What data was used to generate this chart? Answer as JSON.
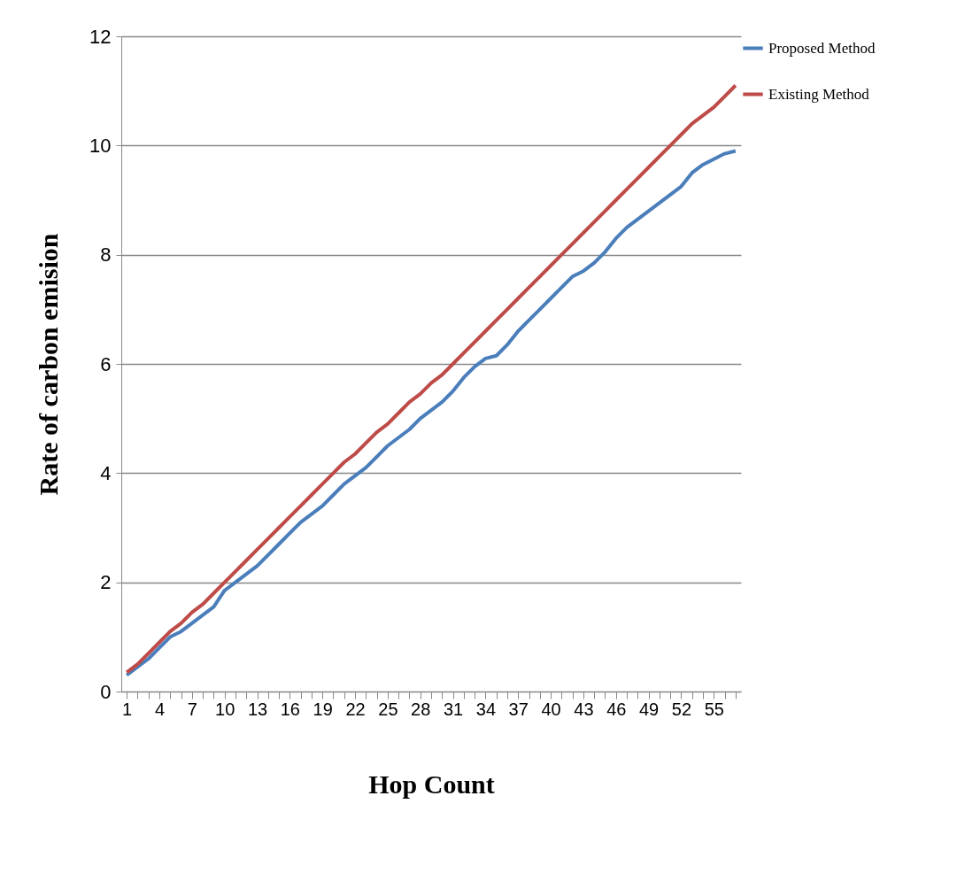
{
  "chart_data": {
    "type": "line",
    "xlabel": "Hop Count",
    "ylabel": "Rate of carbon  emision",
    "categories": [
      "1",
      null,
      null,
      "4",
      null,
      null,
      "7",
      null,
      null,
      "10",
      null,
      null,
      "13",
      null,
      null,
      "16",
      null,
      null,
      "19",
      null,
      null,
      "22",
      null,
      null,
      "25",
      null,
      null,
      "28",
      null,
      null,
      "31",
      null,
      null,
      "34",
      null,
      null,
      "37",
      null,
      null,
      "40",
      null,
      null,
      "43",
      null,
      null,
      "46",
      null,
      null,
      "49",
      null,
      null,
      "52",
      null,
      null,
      "55",
      null,
      null
    ],
    "series": [
      {
        "name": "Proposed Method",
        "color": "#4a7ebb",
        "values": [
          0.3,
          0.45,
          0.6,
          0.8,
          1.0,
          1.1,
          1.25,
          1.4,
          1.55,
          1.85,
          2.0,
          2.15,
          2.3,
          2.5,
          2.7,
          2.9,
          3.1,
          3.25,
          3.4,
          3.6,
          3.8,
          3.95,
          4.1,
          4.3,
          4.5,
          4.65,
          4.8,
          5.0,
          5.15,
          5.3,
          5.5,
          5.75,
          5.95,
          6.1,
          6.15,
          6.35,
          6.6,
          6.8,
          7.0,
          7.2,
          7.4,
          7.6,
          7.7,
          7.85,
          8.05,
          8.3,
          8.5,
          8.65,
          8.8,
          8.95,
          9.1,
          9.25,
          9.5,
          9.65,
          9.75,
          9.85,
          9.9
        ]
      },
      {
        "name": "Existing Method",
        "color": "#be4b48",
        "values": [
          0.35,
          0.5,
          0.7,
          0.9,
          1.1,
          1.25,
          1.45,
          1.6,
          1.8,
          2.0,
          2.2,
          2.4,
          2.6,
          2.8,
          3.0,
          3.2,
          3.4,
          3.6,
          3.8,
          4.0,
          4.2,
          4.35,
          4.55,
          4.75,
          4.9,
          5.1,
          5.3,
          5.45,
          5.65,
          5.8,
          6.0,
          6.2,
          6.4,
          6.6,
          6.8,
          7.0,
          7.2,
          7.4,
          7.6,
          7.8,
          8.0,
          8.2,
          8.4,
          8.6,
          8.8,
          9.0,
          9.2,
          9.4,
          9.6,
          9.8,
          10.0,
          10.2,
          10.4,
          10.55,
          10.7,
          10.9,
          11.1
        ]
      }
    ],
    "ylim": [
      0,
      12
    ],
    "yticks": [
      0,
      2,
      4,
      6,
      8,
      10,
      12
    ],
    "grid": "y",
    "legend": "right",
    "marker": "none",
    "line_style": "solid"
  }
}
